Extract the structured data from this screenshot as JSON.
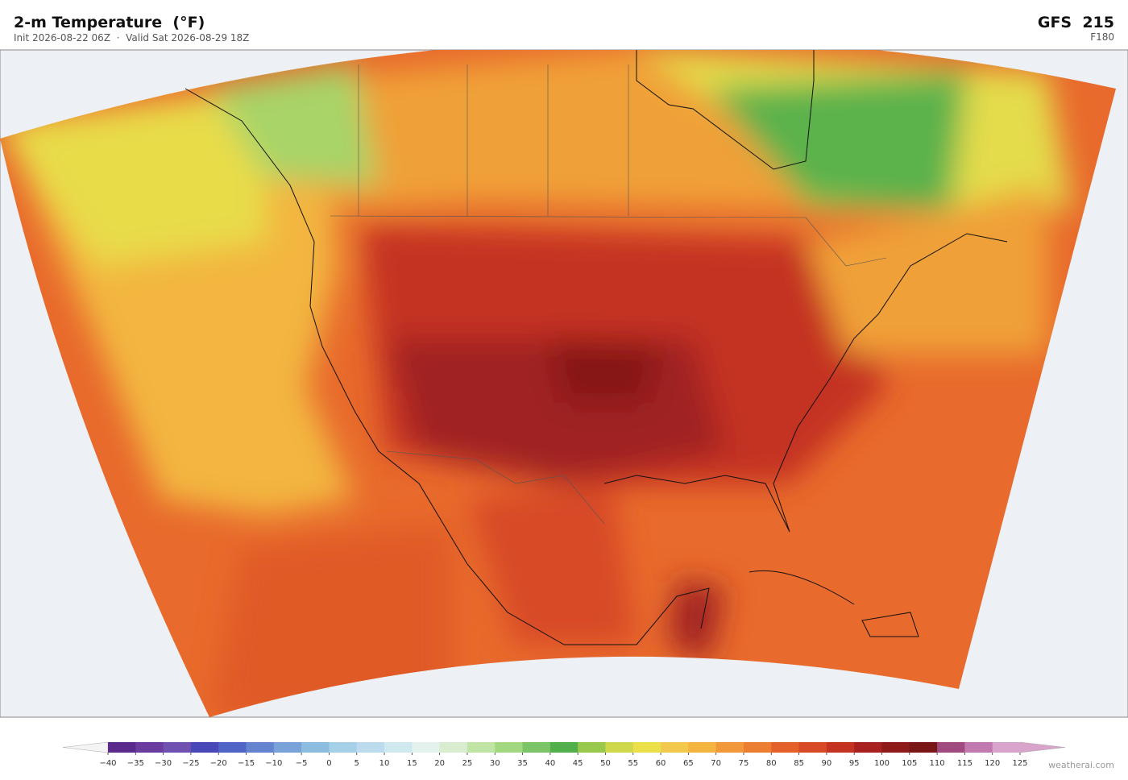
{
  "header": {
    "title": "2-m Temperature  (°F)",
    "subtitle": "Init 2026-08-22 06Z  ·  Valid Sat 2026-08-29 18Z",
    "model": "GFS  215",
    "forecast_hour": "F180"
  },
  "colorbar": {
    "ticks": [
      {
        "value": -40,
        "label": "−40"
      },
      {
        "value": -35,
        "label": "−35"
      },
      {
        "value": -30,
        "label": "−30"
      },
      {
        "value": -25,
        "label": "−25"
      },
      {
        "value": -20,
        "label": "−20"
      },
      {
        "value": -15,
        "label": "−15"
      },
      {
        "value": -10,
        "label": "−10"
      },
      {
        "value": -5,
        "label": "−5"
      },
      0,
      5,
      10,
      15,
      20,
      25,
      30,
      35,
      40,
      45,
      50,
      55,
      60,
      65,
      70,
      75,
      80,
      85,
      90,
      95,
      100,
      105,
      110,
      115,
      120,
      125
    ],
    "colors": [
      "#5a2a8c",
      "#6a3ca0",
      "#7050b0",
      "#4848b8",
      "#5064c8",
      "#6484d0",
      "#78a2d8",
      "#8cbce0",
      "#a6d0e8",
      "#bcdcee",
      "#d0e8f0",
      "#e4f2ee",
      "#d8ecd0",
      "#bfe4a4",
      "#a2d880",
      "#7cc468",
      "#52b04c",
      "#98c84c",
      "#cfd84a",
      "#ebe04a",
      "#f2c94c",
      "#f4b440",
      "#f0983a",
      "#ec7e32",
      "#e4602a",
      "#d84a26",
      "#c43222",
      "#a82020",
      "#8e1a1a",
      "#7a1616",
      "#a04a80",
      "#c07ab0",
      "#d8a4cc"
    ]
  },
  "credit": "weatherai.com"
}
